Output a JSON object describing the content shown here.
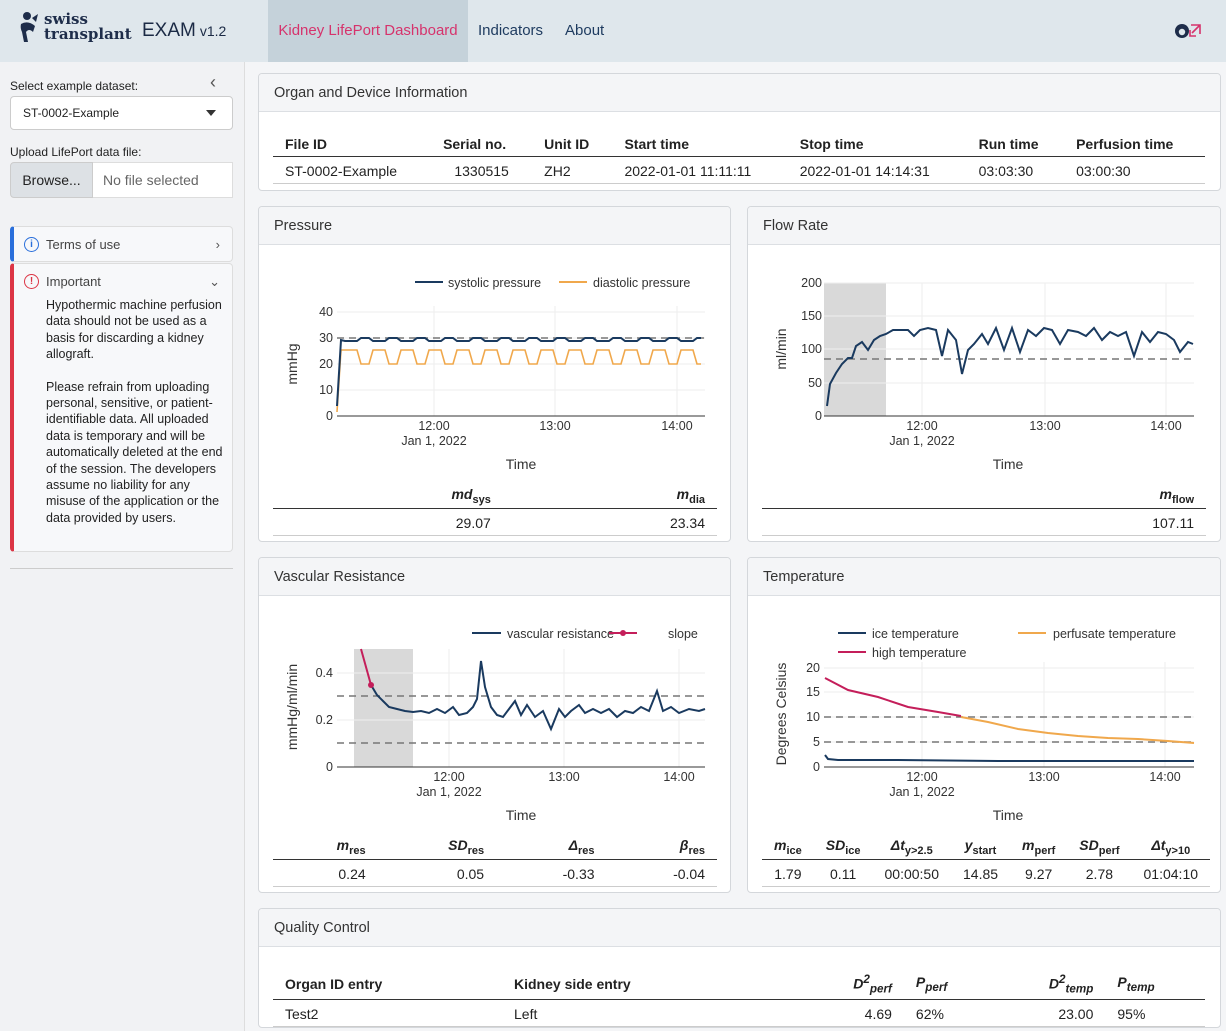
{
  "brand": {
    "logo_line1": "swiss",
    "logo_line2": "transplant",
    "app": "EXAM",
    "version": "v1.2"
  },
  "nav": {
    "items": [
      "Kidney LifePort Dashboard",
      "Indicators",
      "About"
    ]
  },
  "sidebar": {
    "dataset_label": "Select example dataset:",
    "dataset_value": "ST-0002-Example",
    "upload_label": "Upload LifePort data file:",
    "browse_label": "Browse...",
    "no_file": "No file selected",
    "terms_title": "Terms of use",
    "important_title": "Important",
    "important_p1": "Hypothermic machine perfusion data should not be used as a basis for discarding a kidney allograft.",
    "important_p2": "Please refrain from uploading personal, sensitive, or patient-identifiable data. All uploaded data is temporary and will be automatically deleted at the end of the session. The developers assume no liability for any misuse of the application or the data provided by users."
  },
  "organ": {
    "title": "Organ and Device Information",
    "headers": [
      "File ID",
      "Serial no.",
      "Unit ID",
      "Start time",
      "Stop time",
      "Run time",
      "Perfusion time"
    ],
    "row": [
      "ST-0002-Example",
      "1330515",
      "ZH2",
      "2022-01-01 11:11:11",
      "2022-01-01 14:14:31",
      "03:03:30",
      "03:00:30"
    ]
  },
  "pressure": {
    "title": "Pressure",
    "stats_values": [
      "29.07",
      "23.34"
    ]
  },
  "flow": {
    "title": "Flow Rate",
    "stats_values": [
      "107.11"
    ]
  },
  "resistance": {
    "title": "Vascular Resistance",
    "stats_values": [
      "0.24",
      "0.05",
      "-0.33",
      "-0.04"
    ]
  },
  "temperature": {
    "title": "Temperature",
    "stats_values": [
      "1.79",
      "0.11",
      "00:00:50",
      "14.85",
      "9.27",
      "2.78",
      "01:04:10"
    ]
  },
  "quality": {
    "title": "Quality Control",
    "headers": [
      "Organ ID entry",
      "Kidney side entry"
    ],
    "row": [
      "Test2",
      "Left",
      "4.69",
      "62%",
      "23.00",
      "95%"
    ]
  },
  "colors": {
    "dark": "#1a3a5f",
    "orange": "#f0a84c",
    "pink": "#c41e5a",
    "accent": "#d6336c"
  },
  "chart_data": [
    {
      "type": "line",
      "title": "Pressure",
      "xlabel": "Time",
      "ylabel": "mmHg",
      "x_ticks": [
        "12:00",
        "13:00",
        "14:00"
      ],
      "x_tick_sub": "Jan 1, 2022",
      "ylim": [
        0,
        42
      ],
      "y_ticks": [
        0,
        10,
        20,
        30,
        40
      ],
      "series": [
        {
          "name": "systolic pressure",
          "level": 29.5
        },
        {
          "name": "diastolic pressure",
          "level": 23.5
        }
      ],
      "reference_lines": [
        30
      ]
    },
    {
      "type": "line",
      "title": "Flow Rate",
      "xlabel": "Time",
      "ylabel": "ml/min",
      "x_ticks": [
        "12:00",
        "13:00",
        "14:00"
      ],
      "x_tick_sub": "Jan 1, 2022",
      "ylim": [
        0,
        200
      ],
      "y_ticks": [
        0,
        50,
        100,
        150,
        200
      ],
      "reference_lines": [
        85
      ]
    },
    {
      "type": "line",
      "title": "Vascular Resistance",
      "xlabel": "Time",
      "ylabel": "mmHg/ml/min",
      "x_ticks": [
        "12:00",
        "13:00",
        "14:00"
      ],
      "x_tick_sub": "Jan 1, 2022",
      "ylim": [
        0,
        0.5
      ],
      "y_ticks": [
        "0",
        "0.2",
        "0.4"
      ],
      "series": [
        {
          "name": "vascular resistance"
        },
        {
          "name": "slope"
        }
      ],
      "reference_lines": [
        0.1,
        0.3
      ]
    },
    {
      "type": "line",
      "title": "Temperature",
      "xlabel": "Time",
      "ylabel": "Degrees Celsius",
      "x_ticks": [
        "12:00",
        "13:00",
        "14:00"
      ],
      "x_tick_sub": "Jan 1, 2022",
      "ylim": [
        0,
        20
      ],
      "y_ticks": [
        0,
        5,
        10,
        15,
        20
      ],
      "series": [
        {
          "name": "ice temperature"
        },
        {
          "name": "perfusate temperature"
        },
        {
          "name": "high temperature"
        }
      ],
      "reference_lines": [
        5,
        10
      ]
    }
  ]
}
